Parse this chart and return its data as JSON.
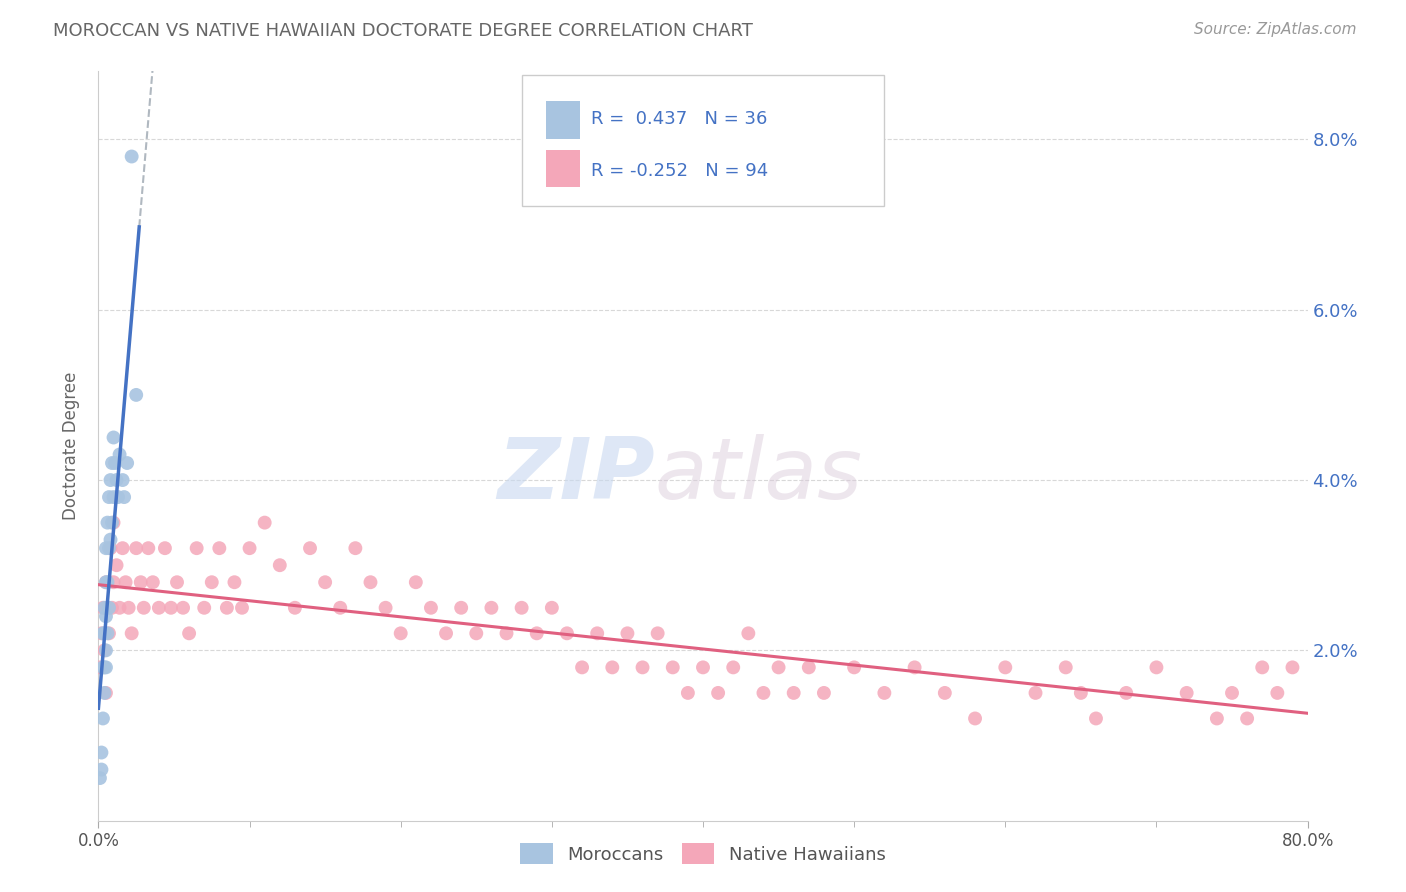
{
  "title": "MOROCCAN VS NATIVE HAWAIIAN DOCTORATE DEGREE CORRELATION CHART",
  "source": "Source: ZipAtlas.com",
  "ylabel": "Doctorate Degree",
  "x_range": [
    0.0,
    0.8
  ],
  "y_range": [
    0.0,
    0.088
  ],
  "y_tick_positions_right": [
    0.08,
    0.06,
    0.04,
    0.02
  ],
  "y_tick_labels_right": [
    "8.0%",
    "6.0%",
    "4.0%",
    "2.0%"
  ],
  "moroccans_x": [
    0.001,
    0.002,
    0.002,
    0.003,
    0.003,
    0.003,
    0.004,
    0.004,
    0.004,
    0.004,
    0.005,
    0.005,
    0.005,
    0.005,
    0.005,
    0.006,
    0.006,
    0.006,
    0.007,
    0.007,
    0.007,
    0.008,
    0.008,
    0.009,
    0.009,
    0.01,
    0.01,
    0.011,
    0.012,
    0.013,
    0.014,
    0.016,
    0.017,
    0.019,
    0.022,
    0.025
  ],
  "moroccans_y": [
    0.005,
    0.008,
    0.006,
    0.022,
    0.018,
    0.012,
    0.025,
    0.022,
    0.018,
    0.015,
    0.032,
    0.028,
    0.024,
    0.02,
    0.018,
    0.035,
    0.028,
    0.022,
    0.038,
    0.032,
    0.025,
    0.04,
    0.033,
    0.042,
    0.035,
    0.045,
    0.038,
    0.042,
    0.04,
    0.038,
    0.043,
    0.04,
    0.038,
    0.042,
    0.078,
    0.05
  ],
  "native_hawaiians_x": [
    0.001,
    0.002,
    0.003,
    0.004,
    0.005,
    0.006,
    0.007,
    0.008,
    0.009,
    0.01,
    0.012,
    0.014,
    0.016,
    0.018,
    0.02,
    0.022,
    0.025,
    0.028,
    0.03,
    0.033,
    0.036,
    0.04,
    0.044,
    0.048,
    0.052,
    0.056,
    0.06,
    0.065,
    0.07,
    0.075,
    0.08,
    0.085,
    0.09,
    0.095,
    0.1,
    0.11,
    0.12,
    0.13,
    0.14,
    0.15,
    0.16,
    0.17,
    0.18,
    0.19,
    0.2,
    0.21,
    0.22,
    0.23,
    0.24,
    0.25,
    0.26,
    0.27,
    0.28,
    0.29,
    0.3,
    0.31,
    0.32,
    0.33,
    0.34,
    0.35,
    0.36,
    0.37,
    0.38,
    0.39,
    0.4,
    0.41,
    0.42,
    0.43,
    0.44,
    0.45,
    0.46,
    0.47,
    0.48,
    0.5,
    0.52,
    0.54,
    0.56,
    0.58,
    0.6,
    0.62,
    0.64,
    0.65,
    0.66,
    0.68,
    0.7,
    0.72,
    0.74,
    0.75,
    0.76,
    0.77,
    0.78,
    0.79,
    0.005,
    0.01
  ],
  "native_hawaiians_y": [
    0.018,
    0.022,
    0.025,
    0.02,
    0.028,
    0.025,
    0.022,
    0.032,
    0.025,
    0.028,
    0.03,
    0.025,
    0.032,
    0.028,
    0.025,
    0.022,
    0.032,
    0.028,
    0.025,
    0.032,
    0.028,
    0.025,
    0.032,
    0.025,
    0.028,
    0.025,
    0.022,
    0.032,
    0.025,
    0.028,
    0.032,
    0.025,
    0.028,
    0.025,
    0.032,
    0.035,
    0.03,
    0.025,
    0.032,
    0.028,
    0.025,
    0.032,
    0.028,
    0.025,
    0.022,
    0.028,
    0.025,
    0.022,
    0.025,
    0.022,
    0.025,
    0.022,
    0.025,
    0.022,
    0.025,
    0.022,
    0.018,
    0.022,
    0.018,
    0.022,
    0.018,
    0.022,
    0.018,
    0.015,
    0.018,
    0.015,
    0.018,
    0.022,
    0.015,
    0.018,
    0.015,
    0.018,
    0.015,
    0.018,
    0.015,
    0.018,
    0.015,
    0.012,
    0.018,
    0.015,
    0.018,
    0.015,
    0.012,
    0.015,
    0.018,
    0.015,
    0.012,
    0.015,
    0.012,
    0.018,
    0.015,
    0.018,
    0.015,
    0.035
  ],
  "moroccan_color": "#a8c4e0",
  "native_hawaiian_color": "#f4a7b9",
  "moroccan_line_color": "#4472c4",
  "native_hawaiian_line_color": "#e06080",
  "legend_label_moroccan": "Moroccans",
  "legend_label_native": "Native Hawaiians",
  "r_moroccan": 0.437,
  "n_moroccan": 36,
  "r_native": -0.252,
  "n_native": 94,
  "watermark_zip": "ZIP",
  "watermark_atlas": "atlas",
  "background_color": "#ffffff",
  "grid_color": "#d8d8d8",
  "title_color": "#666666",
  "right_axis_color": "#4472c4",
  "label_color": "#666666"
}
